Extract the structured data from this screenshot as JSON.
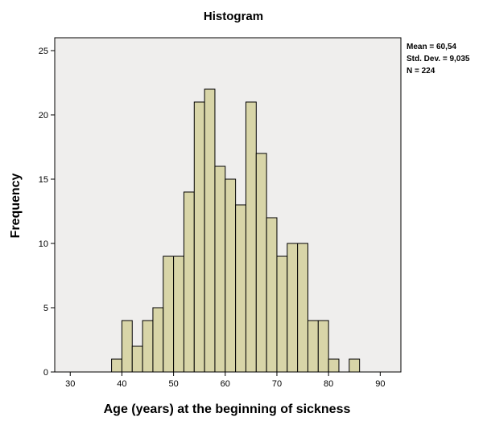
{
  "chart_data": {
    "type": "bar",
    "title": "Histogram",
    "xlabel": "Age (years) at the beginning of sickness",
    "ylabel": "Frequency",
    "xlim": [
      27,
      94
    ],
    "ylim": [
      0,
      26
    ],
    "xticks": [
      30,
      40,
      50,
      60,
      70,
      80,
      90
    ],
    "yticks": [
      0,
      5,
      10,
      15,
      20,
      25
    ],
    "bin_width": 2,
    "bins": [
      {
        "x": 38,
        "value": 1
      },
      {
        "x": 40,
        "value": 4
      },
      {
        "x": 42,
        "value": 2
      },
      {
        "x": 44,
        "value": 4
      },
      {
        "x": 46,
        "value": 5
      },
      {
        "x": 48,
        "value": 9
      },
      {
        "x": 50,
        "value": 9
      },
      {
        "x": 52,
        "value": 14
      },
      {
        "x": 54,
        "value": 21
      },
      {
        "x": 56,
        "value": 22
      },
      {
        "x": 58,
        "value": 16
      },
      {
        "x": 60,
        "value": 15
      },
      {
        "x": 62,
        "value": 13
      },
      {
        "x": 64,
        "value": 21
      },
      {
        "x": 66,
        "value": 17
      },
      {
        "x": 68,
        "value": 12
      },
      {
        "x": 70,
        "value": 9
      },
      {
        "x": 72,
        "value": 10
      },
      {
        "x": 74,
        "value": 10
      },
      {
        "x": 76,
        "value": 4
      },
      {
        "x": 78,
        "value": 4
      },
      {
        "x": 80,
        "value": 1
      },
      {
        "x": 84,
        "value": 1
      }
    ],
    "stats": {
      "mean": "Mean = 60,54",
      "std": "Std. Dev. = 9,035",
      "n": "N = 224"
    },
    "grid": false,
    "colors": {
      "bar_fill": "#d8d5a8",
      "plot_bg": "#efeeed",
      "bar_stroke": "#000000"
    }
  }
}
